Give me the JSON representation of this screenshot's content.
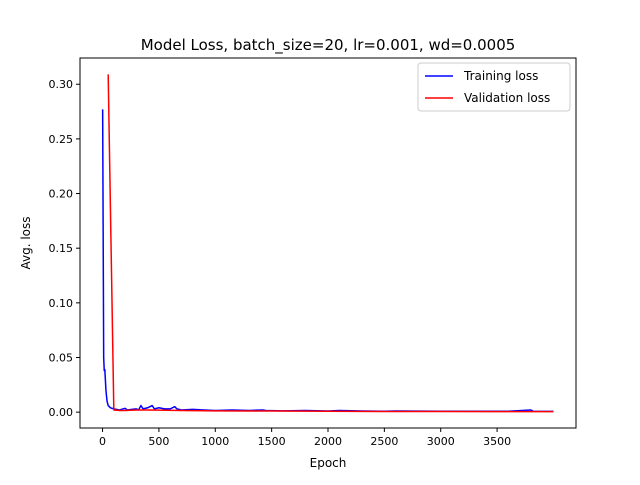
{
  "chart_data": {
    "type": "line",
    "title": "Model Loss, batch_size=20, lr=0.001, wd=0.0005",
    "xlabel": "Epoch",
    "ylabel": "Avg. loss",
    "xlim": [
      -200,
      4200
    ],
    "ylim": [
      -0.0145,
      0.324
    ],
    "xticks": [
      0,
      500,
      1000,
      1500,
      2000,
      2500,
      3000,
      3500
    ],
    "xtick_labels": [
      "0",
      "500",
      "1000",
      "1500",
      "2000",
      "2500",
      "3000",
      "3500"
    ],
    "yticks": [
      0.0,
      0.05,
      0.1,
      0.15,
      0.2,
      0.25,
      0.3
    ],
    "ytick_labels": [
      "0.00",
      "0.05",
      "0.10",
      "0.15",
      "0.20",
      "0.25",
      "0.30"
    ],
    "grid": false,
    "legend_position": "top-right",
    "series": [
      {
        "name": "Training loss",
        "color": "#0000ff",
        "points": [
          [
            1,
            0.277
          ],
          [
            10,
            0.05
          ],
          [
            15,
            0.038
          ],
          [
            20,
            0.039
          ],
          [
            25,
            0.03
          ],
          [
            30,
            0.02
          ],
          [
            40,
            0.01
          ],
          [
            50,
            0.006
          ],
          [
            70,
            0.004
          ],
          [
            100,
            0.003
          ],
          [
            150,
            0.002
          ],
          [
            200,
            0.0035
          ],
          [
            220,
            0.002
          ],
          [
            260,
            0.0025
          ],
          [
            300,
            0.003
          ],
          [
            320,
            0.002
          ],
          [
            340,
            0.006
          ],
          [
            360,
            0.003
          ],
          [
            400,
            0.004
          ],
          [
            440,
            0.006
          ],
          [
            460,
            0.003
          ],
          [
            500,
            0.004
          ],
          [
            550,
            0.003
          ],
          [
            600,
            0.003
          ],
          [
            640,
            0.005
          ],
          [
            660,
            0.003
          ],
          [
            700,
            0.002
          ],
          [
            800,
            0.0025
          ],
          [
            900,
            0.002
          ],
          [
            1000,
            0.0015
          ],
          [
            1150,
            0.002
          ],
          [
            1300,
            0.0015
          ],
          [
            1420,
            0.002
          ],
          [
            1450,
            0.0015
          ],
          [
            1600,
            0.0012
          ],
          [
            1800,
            0.0015
          ],
          [
            2000,
            0.001
          ],
          [
            2100,
            0.0015
          ],
          [
            2300,
            0.001
          ],
          [
            2500,
            0.0008
          ],
          [
            2600,
            0.001
          ],
          [
            3000,
            0.0008
          ],
          [
            3400,
            0.0008
          ],
          [
            3600,
            0.0008
          ],
          [
            3800,
            0.002
          ],
          [
            3820,
            0.0008
          ],
          [
            4000,
            0.0007
          ]
        ]
      },
      {
        "name": "Validation loss",
        "color": "#ff0000",
        "points": [
          [
            50,
            0.309
          ],
          [
            100,
            0.002
          ],
          [
            150,
            0.0015
          ],
          [
            200,
            0.0015
          ],
          [
            300,
            0.002
          ],
          [
            400,
            0.002
          ],
          [
            500,
            0.0018
          ],
          [
            700,
            0.0015
          ],
          [
            1000,
            0.0012
          ],
          [
            1500,
            0.001
          ],
          [
            2000,
            0.0008
          ],
          [
            2500,
            0.0006
          ],
          [
            3000,
            0.0006
          ],
          [
            3500,
            0.0005
          ],
          [
            4000,
            0.0005
          ]
        ]
      }
    ]
  }
}
